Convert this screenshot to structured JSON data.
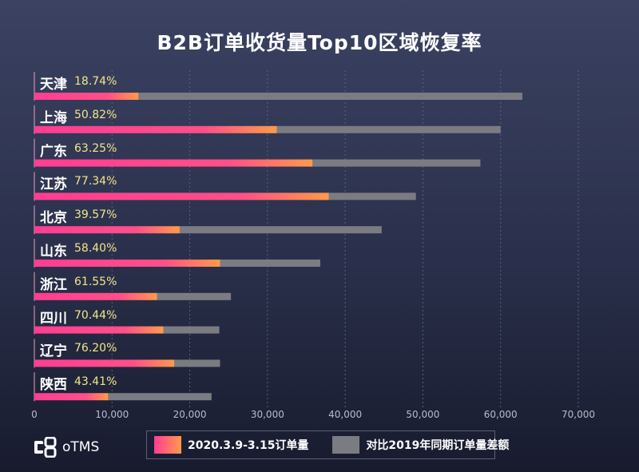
{
  "chart_data": {
    "type": "bar",
    "orientation": "horizontal",
    "stacked": true,
    "title": "B2B订单收货量Top10区域恢复率",
    "categories": [
      "天津",
      "上海",
      "广东",
      "江苏",
      "北京",
      "山东",
      "浙江",
      "四川",
      "辽宁",
      "陕西"
    ],
    "rates": [
      "18.74%",
      "50.82%",
      "63.25%",
      "77.34%",
      "39.57%",
      "58.40%",
      "61.55%",
      "70.44%",
      "76.20%",
      "43.41%"
    ],
    "series": [
      {
        "name": "2020.3.9-3.15订单量",
        "color": "#ff3d93",
        "values": [
          13400,
          31200,
          35800,
          37900,
          18700,
          23900,
          15800,
          16600,
          18000,
          9500
        ]
      },
      {
        "name": "对比2019年同期订单量差额",
        "color": "#7b7c82",
        "values": [
          49400,
          28800,
          21600,
          11200,
          26000,
          12900,
          9500,
          7200,
          5900,
          13300
        ]
      }
    ],
    "xlim": [
      0,
      70000
    ],
    "xticks": [
      "0",
      "10,000",
      "20,000",
      "30,000",
      "40,000",
      "50,000",
      "60,000",
      "70,000"
    ],
    "grid": true,
    "legend": "bottom"
  },
  "brand": "oTMS"
}
